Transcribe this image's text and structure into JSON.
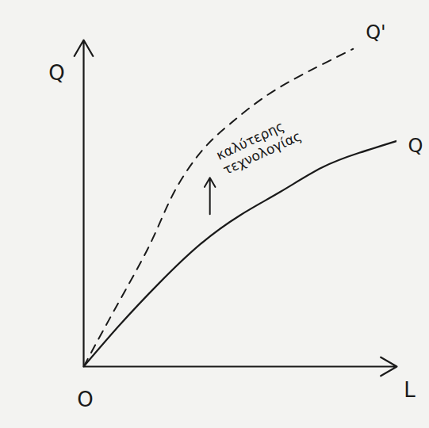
{
  "chart_data": {
    "type": "line",
    "x_label": "L",
    "y_label": "Q",
    "xlim": [
      0,
      10
    ],
    "ylim": [
      0,
      11
    ],
    "xticks": [],
    "yticks": [],
    "tick_labels": false,
    "grid": false,
    "series": [
      {
        "name": "Q",
        "color": "#1a1a1a",
        "line_style": "solid",
        "x": [
          0,
          1.15,
          2.4,
          3.7,
          5.0,
          6.3,
          7.6,
          8.8,
          10
        ],
        "values": [
          0,
          1.4,
          2.8,
          4.1,
          5.1,
          5.9,
          6.7,
          7.2,
          7.6
        ]
      },
      {
        "name": "Q'",
        "color": "#1a1a1a",
        "line_style": "dashed",
        "x": [
          0,
          0.64,
          1.4,
          2.2,
          2.9,
          3.8,
          4.7,
          5.8,
          7.1,
          8.6
        ],
        "values": [
          0,
          1.25,
          2.7,
          4.3,
          5.9,
          7.3,
          8.2,
          9.1,
          9.9,
          10.7
        ]
      }
    ],
    "annotations": [
      {
        "text": "O",
        "x": 0,
        "y": 0
      },
      {
        "text": "καλύτερης τεχνολογίας",
        "x": 4.36,
        "y": 6.86
      }
    ]
  }
}
